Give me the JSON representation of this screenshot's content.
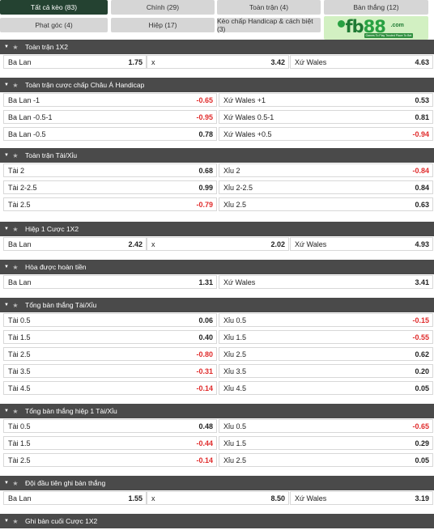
{
  "tabs": [
    {
      "label": "Tất cả kèo (83)",
      "active": true
    },
    {
      "label": "Chính (29)"
    },
    {
      "label": "Toàn trận (4)"
    },
    {
      "label": "Bàn thắng (12)"
    },
    {
      "label": "Phạt góc (4)"
    },
    {
      "label": "Hiệp (17)"
    },
    {
      "label": "Kèo chấp Handicap & cách biệt (3)"
    }
  ],
  "logo": {
    "word_a": "fb",
    "word_b": "88",
    "suffix": ".com",
    "tagline": "Games To Play  Trusted Place To Bet"
  },
  "colors": {
    "header_bg": "#4a4a4a",
    "tab_active": "#244231",
    "tab": "#d6d6d6",
    "negative": "#e02b2b",
    "logo_bg": "#d2f0c2"
  },
  "sections": [
    {
      "title": "Toàn trận 1X2",
      "rows": [
        [
          {
            "label": "Ba Lan",
            "value": "1.75"
          },
          {
            "label": "x",
            "value": "3.42"
          },
          {
            "label": "Xứ Wales",
            "value": "4.63"
          }
        ]
      ]
    },
    {
      "title": "Toàn trận cược chấp Châu Á Handicap",
      "rows": [
        [
          {
            "label": "Ba Lan -1",
            "value": "-0.65"
          },
          {
            "label": "Xứ Wales +1",
            "value": "0.53"
          }
        ],
        [
          {
            "label": "Ba Lan -0.5-1",
            "value": "-0.95"
          },
          {
            "label": "Xứ Wales 0.5-1",
            "value": "0.81"
          }
        ],
        [
          {
            "label": "Ba Lan -0.5",
            "value": "0.78"
          },
          {
            "label": "Xứ Wales +0.5",
            "value": "-0.94"
          }
        ]
      ]
    },
    {
      "title": "Toàn trận Tài/Xỉu",
      "rows": [
        [
          {
            "label": "Tài 2",
            "value": "0.68"
          },
          {
            "label": "Xỉu 2",
            "value": "-0.84"
          }
        ],
        [
          {
            "label": "Tài 2-2.5",
            "value": "0.99"
          },
          {
            "label": "Xỉu 2-2.5",
            "value": "0.84"
          }
        ],
        [
          {
            "label": "Tài 2.5",
            "value": "-0.79"
          },
          {
            "label": "Xỉu 2.5",
            "value": "0.63"
          }
        ]
      ]
    },
    {
      "title": "Hiệp 1 Cược 1X2",
      "rows": [
        [
          {
            "label": "Ba Lan",
            "value": "2.42"
          },
          {
            "label": "x",
            "value": "2.02"
          },
          {
            "label": "Xứ Wales",
            "value": "4.93"
          }
        ]
      ]
    },
    {
      "title": "Hòa được hoàn tiền",
      "rows": [
        [
          {
            "label": "Ba Lan",
            "value": "1.31"
          },
          {
            "label": "Xứ Wales",
            "value": "3.41"
          }
        ]
      ]
    },
    {
      "title": "Tổng bàn thắng Tài/Xỉu",
      "rows": [
        [
          {
            "label": "Tài 0.5",
            "value": "0.06"
          },
          {
            "label": "Xỉu 0.5",
            "value": "-0.15"
          }
        ],
        [
          {
            "label": "Tài 1.5",
            "value": "0.40"
          },
          {
            "label": "Xỉu 1.5",
            "value": "-0.55"
          }
        ],
        [
          {
            "label": "Tài 2.5",
            "value": "-0.80"
          },
          {
            "label": "Xỉu 2.5",
            "value": "0.62"
          }
        ],
        [
          {
            "label": "Tài 3.5",
            "value": "-0.31"
          },
          {
            "label": "Xỉu 3.5",
            "value": "0.20"
          }
        ],
        [
          {
            "label": "Tài 4.5",
            "value": "-0.14"
          },
          {
            "label": "Xỉu 4.5",
            "value": "0.05"
          }
        ]
      ]
    },
    {
      "title": "Tổng bàn thắng hiệp 1 Tài/Xỉu",
      "rows": [
        [
          {
            "label": "Tài 0.5",
            "value": "0.48"
          },
          {
            "label": "Xỉu 0.5",
            "value": "-0.65"
          }
        ],
        [
          {
            "label": "Tài 1.5",
            "value": "-0.44"
          },
          {
            "label": "Xỉu 1.5",
            "value": "0.29"
          }
        ],
        [
          {
            "label": "Tài 2.5",
            "value": "-0.14"
          },
          {
            "label": "Xỉu 2.5",
            "value": "0.05"
          }
        ]
      ]
    },
    {
      "title": "Đội đầu tiên ghi bàn thắng",
      "rows": [
        [
          {
            "label": "Ba Lan",
            "value": "1.55"
          },
          {
            "label": "x",
            "value": "8.50"
          },
          {
            "label": "Xứ Wales",
            "value": "3.19"
          }
        ]
      ]
    },
    {
      "title": "Ghi bàn cuối Cược 1X2",
      "rows": []
    }
  ]
}
